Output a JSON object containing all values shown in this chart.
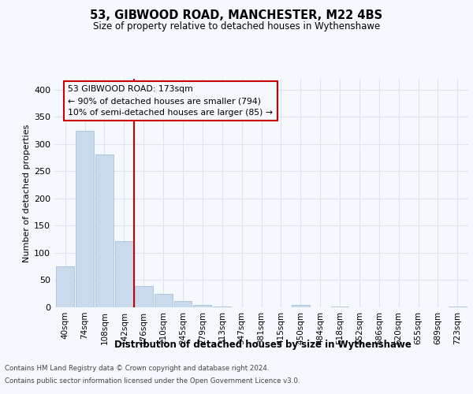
{
  "title": "53, GIBWOOD ROAD, MANCHESTER, M22 4BS",
  "subtitle": "Size of property relative to detached houses in Wythenshawe",
  "xlabel": "Distribution of detached houses by size in Wythenshawe",
  "ylabel": "Number of detached properties",
  "categories": [
    "40sqm",
    "74sqm",
    "108sqm",
    "142sqm",
    "176sqm",
    "210sqm",
    "245sqm",
    "279sqm",
    "313sqm",
    "347sqm",
    "381sqm",
    "415sqm",
    "450sqm",
    "484sqm",
    "518sqm",
    "552sqm",
    "586sqm",
    "620sqm",
    "655sqm",
    "689sqm",
    "723sqm"
  ],
  "values": [
    75,
    325,
    281,
    122,
    39,
    24,
    11,
    4,
    2,
    0,
    0,
    0,
    5,
    0,
    2,
    0,
    0,
    0,
    0,
    0,
    2
  ],
  "bar_color": "#c8daec",
  "bar_edge_color": "#a8c0d8",
  "vline_color": "#cc0000",
  "vline_idx": 4,
  "annotation_title": "53 GIBWOOD ROAD: 173sqm",
  "annotation_line1": "← 90% of detached houses are smaller (794)",
  "annotation_line2": "10% of semi-detached houses are larger (85) →",
  "ylim": [
    0,
    420
  ],
  "yticks": [
    0,
    50,
    100,
    150,
    200,
    250,
    300,
    350,
    400
  ],
  "background_color": "#f5f8fc",
  "grid_color": "#dde4ee",
  "footer1": "Contains HM Land Registry data © Crown copyright and database right 2024.",
  "footer2": "Contains public sector information licensed under the Open Government Licence v3.0."
}
